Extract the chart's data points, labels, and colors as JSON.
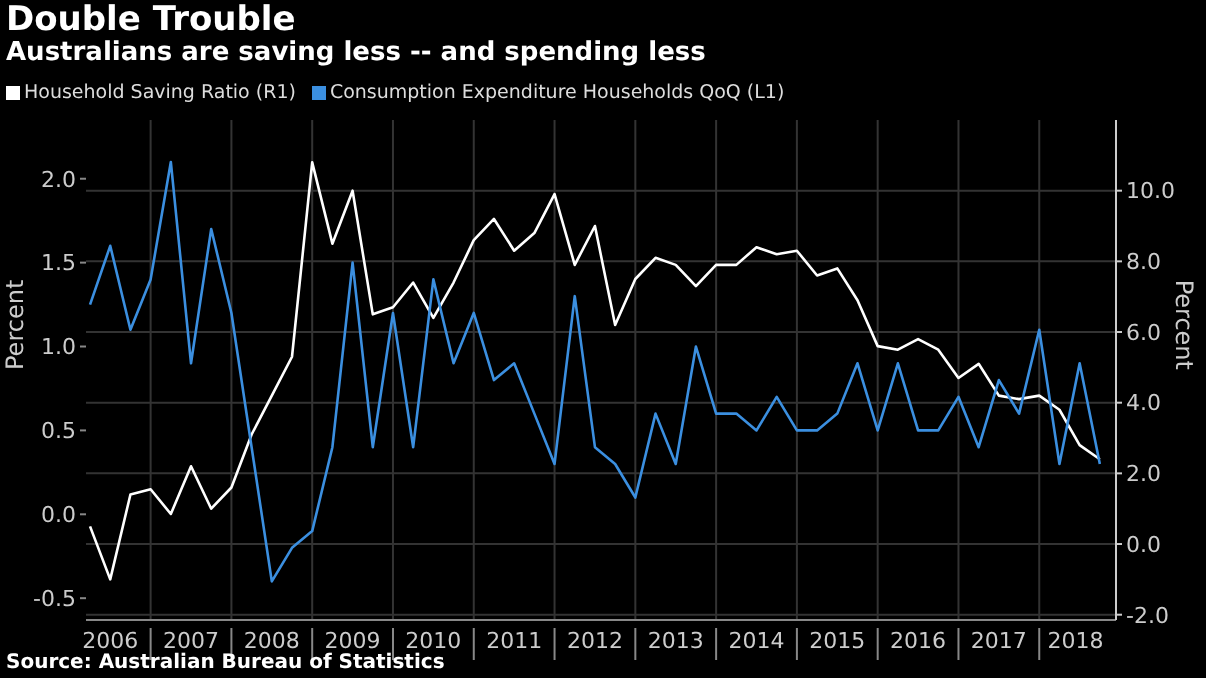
{
  "chart_data": {
    "type": "line",
    "title": "Double Trouble",
    "subtitle": "Australians are saving less -- and spending less",
    "ylabel": "Percent",
    "y2label": "Percent",
    "annotations": [
      "Source: Australian Bureau of Statistics"
    ],
    "x": [
      2006.25,
      2006.5,
      2006.75,
      2007,
      2007.25,
      2007.5,
      2007.75,
      2008,
      2008.25,
      2008.5,
      2008.75,
      2009,
      2009.25,
      2009.5,
      2009.75,
      2010,
      2010.25,
      2010.5,
      2010.75,
      2011,
      2011.25,
      2011.5,
      2011.75,
      2012,
      2012.25,
      2012.5,
      2012.75,
      2013,
      2013.25,
      2013.5,
      2013.75,
      2014,
      2014.25,
      2014.5,
      2014.75,
      2015,
      2015.25,
      2015.5,
      2015.75,
      2016,
      2016.25,
      2016.5,
      2016.75,
      2017,
      2017.25,
      2017.5,
      2017.75,
      2018,
      2018.25,
      2018.5,
      2018.75
    ],
    "series": [
      {
        "name": "Household Saving Ratio (R1)",
        "color": "#ffffff",
        "axis": "y2",
        "values": [
          0.5,
          -1.0,
          1.4,
          1.55,
          0.85,
          2.2,
          1.0,
          1.6,
          3.1,
          4.2,
          5.3,
          10.8,
          8.5,
          10.0,
          6.5,
          6.7,
          7.4,
          6.4,
          7.4,
          8.6,
          9.2,
          8.3,
          8.8,
          9.9,
          7.9,
          9.0,
          6.2,
          7.5,
          8.1,
          7.9,
          7.3,
          7.9,
          7.9,
          8.4,
          8.2,
          8.3,
          7.6,
          7.8,
          6.9,
          5.6,
          5.5,
          5.8,
          5.5,
          4.7,
          5.1,
          4.2,
          4.1,
          4.2,
          3.8,
          2.8,
          2.4
        ]
      },
      {
        "name": "Consumption Expenditure Households QoQ (L1)",
        "color": "#3b8fe0",
        "values": [
          1.25,
          1.6,
          1.1,
          1.4,
          2.1,
          0.9,
          1.7,
          1.2,
          0.4,
          -0.4,
          -0.2,
          -0.1,
          0.4,
          1.5,
          0.4,
          1.2,
          0.4,
          1.4,
          0.9,
          1.2,
          0.8,
          0.9,
          0.6,
          0.3,
          1.3,
          0.4,
          0.3,
          0.1,
          0.6,
          0.3,
          1.0,
          0.6,
          0.6,
          0.5,
          0.7,
          0.5,
          0.5,
          0.6,
          0.9,
          0.5,
          0.9,
          0.5,
          0.5,
          0.7,
          0.4,
          0.8,
          0.6,
          1.1,
          0.3,
          0.9,
          0.3
        ]
      }
    ],
    "xlim": [
      2006.2,
      2018.95
    ],
    "xticks": [
      {
        "value": 2006.5,
        "label": "2006"
      },
      {
        "value": 2007,
        "label": null
      },
      {
        "value": 2007.5,
        "label": "2007"
      },
      {
        "value": 2008,
        "label": null
      },
      {
        "value": 2008.5,
        "label": "2008"
      },
      {
        "value": 2009,
        "label": null
      },
      {
        "value": 2009.5,
        "label": "2009"
      },
      {
        "value": 2010,
        "label": null
      },
      {
        "value": 2010.5,
        "label": "2010"
      },
      {
        "value": 2011,
        "label": null
      },
      {
        "value": 2011.5,
        "label": "2011"
      },
      {
        "value": 2012,
        "label": null
      },
      {
        "value": 2012.5,
        "label": "2012"
      },
      {
        "value": 2013,
        "label": null
      },
      {
        "value": 2013.5,
        "label": "2013"
      },
      {
        "value": 2014,
        "label": null
      },
      {
        "value": 2014.5,
        "label": "2014"
      },
      {
        "value": 2015,
        "label": null
      },
      {
        "value": 2015.5,
        "label": "2015"
      },
      {
        "value": 2016,
        "label": null
      },
      {
        "value": 2016.5,
        "label": "2016"
      },
      {
        "value": 2017,
        "label": null
      },
      {
        "value": 2017.5,
        "label": "2017"
      },
      {
        "value": 2018,
        "label": null
      },
      {
        "value": 2018.45,
        "label": "2018"
      }
    ],
    "ylim": [
      -0.63,
      2.35
    ],
    "yticks": [
      {
        "value": -0.5,
        "label": "-0.5"
      },
      {
        "value": 0,
        "label": "0.0"
      },
      {
        "value": 0.5,
        "label": "0.5"
      },
      {
        "value": 1,
        "label": "1.0"
      },
      {
        "value": 1.5,
        "label": "1.5"
      },
      {
        "value": 2,
        "label": "2.0"
      }
    ],
    "y2lim": [
      -2.15,
      12.0
    ],
    "y2ticks": [
      {
        "value": -2,
        "label": "-2.0"
      },
      {
        "value": 0,
        "label": "0.0"
      },
      {
        "value": 2,
        "label": "2.0"
      },
      {
        "value": 4,
        "label": "4.0"
      },
      {
        "value": 6,
        "label": "6.0"
      },
      {
        "value": 8,
        "label": "8.0"
      },
      {
        "value": 10,
        "label": "10.0"
      }
    ],
    "grid": true,
    "legend": "top left",
    "marker": "none",
    "line_style": "solid"
  }
}
